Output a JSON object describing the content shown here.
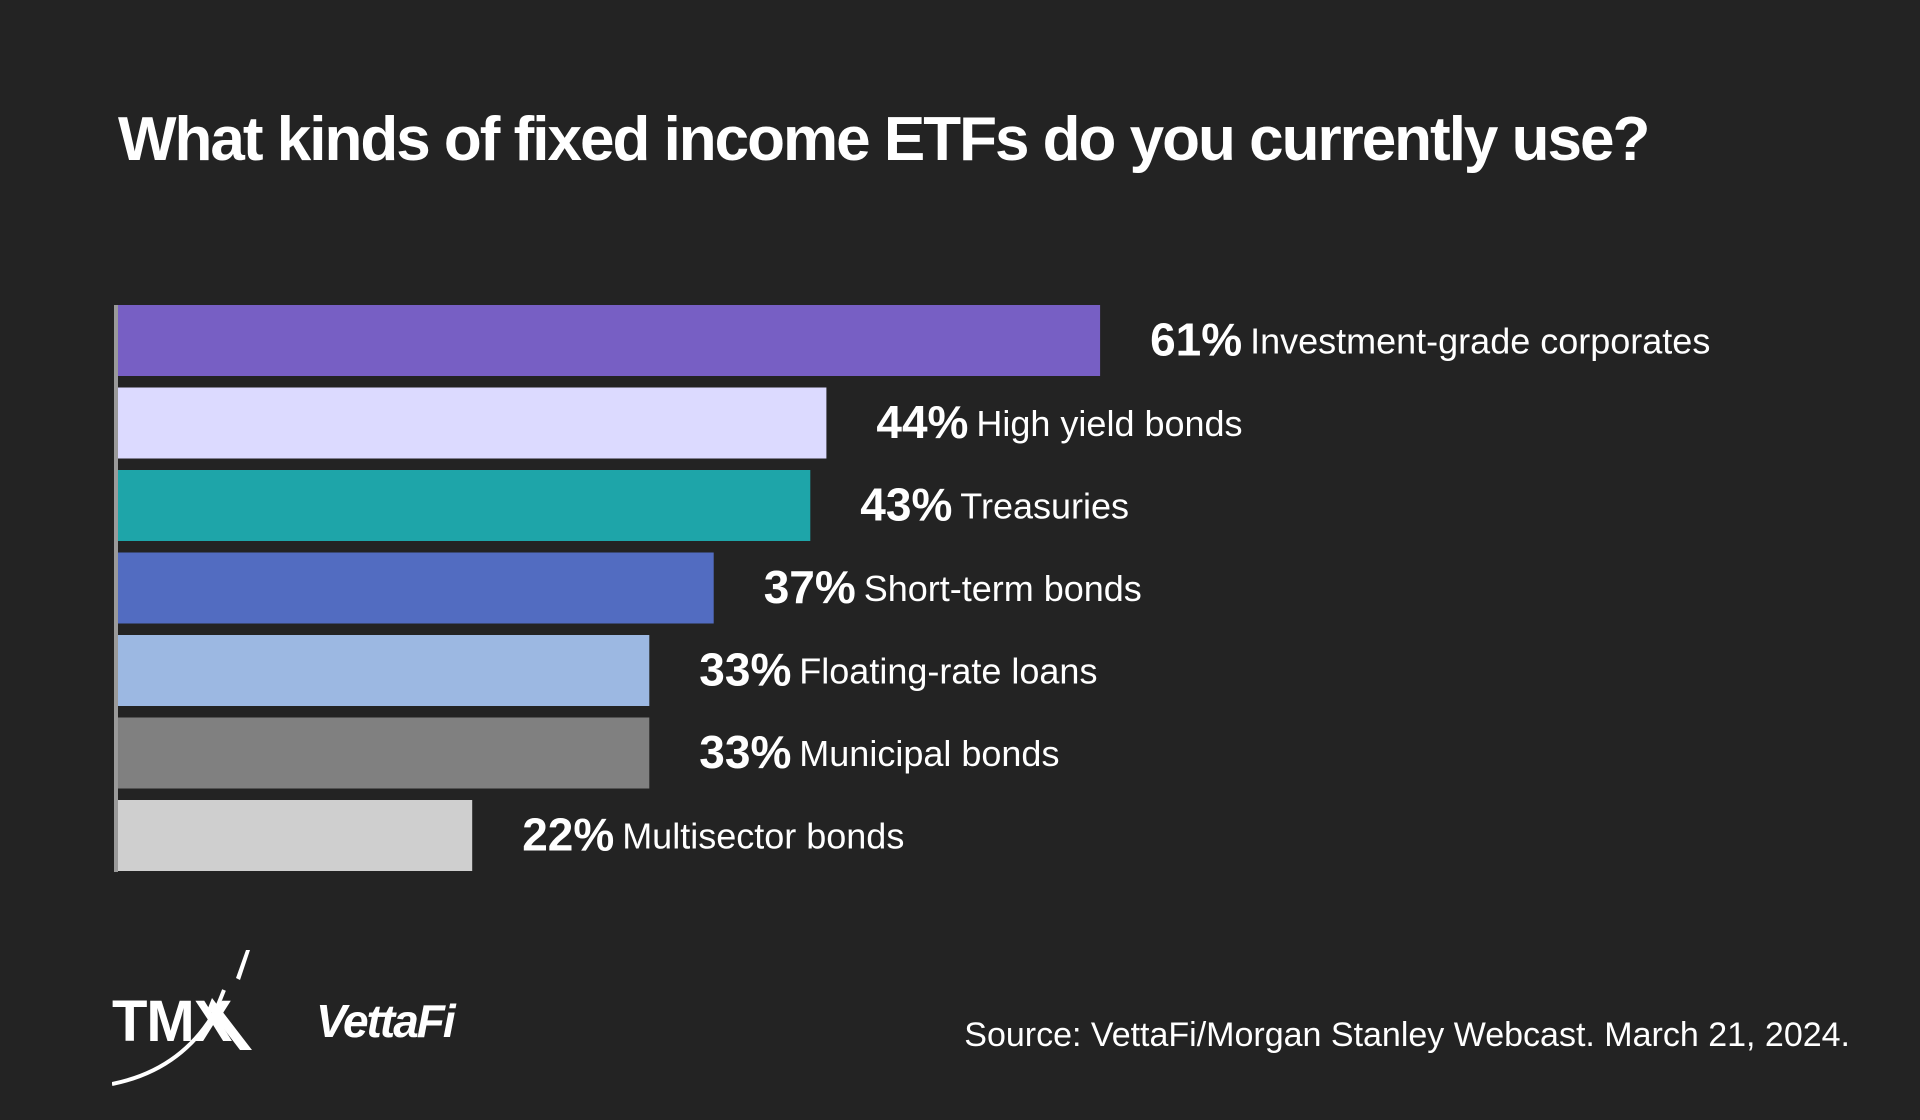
{
  "title": "What kinds of fixed income ETFs do you currently use?",
  "source": "Source: VettaFi/Morgan Stanley Webcast. March 21, 2024.",
  "logos": {
    "tmx": "TMX",
    "vettafi": "VettaFi"
  },
  "chart_data": {
    "type": "bar",
    "orientation": "horizontal",
    "categories": [
      "Investment-grade corporates",
      "High yield bonds",
      "Treasuries",
      "Short-term bonds",
      "Floating-rate loans",
      "Municipal bonds",
      "Multisector bonds"
    ],
    "values": [
      61,
      44,
      43,
      37,
      33,
      33,
      22
    ],
    "value_labels": [
      "61%",
      "44%",
      "43%",
      "37%",
      "33%",
      "33%",
      "22%"
    ],
    "colors": [
      "#775FC4",
      "#DCDAFF",
      "#1EA5A9",
      "#526CC1",
      "#9CB8E2",
      "#808080",
      "#CFCFCF"
    ],
    "unit": "%",
    "grid": false,
    "legend": "none"
  }
}
